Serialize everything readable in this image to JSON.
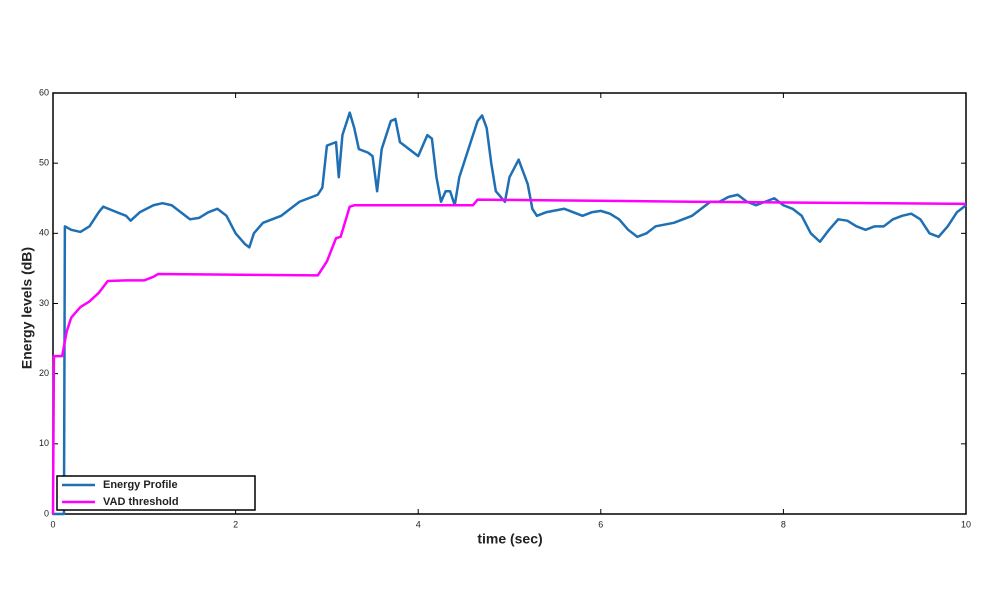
{
  "chart_data": {
    "type": "line",
    "x_label": "time (sec)",
    "y_label": "Energy levels (dB)",
    "xlim": [
      0,
      10
    ],
    "ylim": [
      0,
      60
    ],
    "xticks": [
      0,
      2,
      4,
      6,
      8,
      10
    ],
    "yticks": [
      0,
      10,
      20,
      30,
      40,
      50,
      60
    ],
    "grid": false,
    "legend": "lower left",
    "series": [
      {
        "name": "Energy Profile",
        "color": "#1f6fb4",
        "x": [
          0,
          0.12,
          0.13,
          0.2,
          0.3,
          0.4,
          0.5,
          0.55,
          0.7,
          0.8,
          0.85,
          0.95,
          1.1,
          1.2,
          1.3,
          1.4,
          1.5,
          1.6,
          1.7,
          1.8,
          1.9,
          2.0,
          2.1,
          2.15,
          2.2,
          2.3,
          2.5,
          2.6,
          2.7,
          2.8,
          2.9,
          2.95,
          3.0,
          3.1,
          3.13,
          3.17,
          3.25,
          3.3,
          3.35,
          3.45,
          3.5,
          3.55,
          3.6,
          3.7,
          3.75,
          3.8,
          3.9,
          4.0,
          4.05,
          4.1,
          4.15,
          4.2,
          4.25,
          4.3,
          4.35,
          4.4,
          4.45,
          4.55,
          4.65,
          4.7,
          4.75,
          4.8,
          4.85,
          4.95,
          5.0,
          5.1,
          5.2,
          5.25,
          5.3,
          5.4,
          5.6,
          5.8,
          5.9,
          6.0,
          6.1,
          6.2,
          6.3,
          6.4,
          6.5,
          6.6,
          6.8,
          6.9,
          7.0,
          7.1,
          7.2,
          7.3,
          7.4,
          7.5,
          7.6,
          7.7,
          7.8,
          7.9,
          8.0,
          8.1,
          8.2,
          8.3,
          8.4,
          8.5,
          8.6,
          8.7,
          8.8,
          8.9,
          9.0,
          9.1,
          9.2,
          9.3,
          9.4,
          9.5,
          9.6,
          9.7,
          9.8,
          9.9,
          10.0
        ],
        "values": [
          0,
          0,
          41,
          40.5,
          40.2,
          41,
          43,
          43.8,
          43,
          42.5,
          41.8,
          43,
          44,
          44.3,
          44,
          43,
          42,
          42.2,
          43,
          43.5,
          42.5,
          40,
          38.5,
          38,
          40,
          41.5,
          42.5,
          43.5,
          44.5,
          45,
          45.5,
          46.5,
          52.5,
          53,
          48,
          54,
          57.2,
          55,
          52,
          51.5,
          51,
          46,
          52,
          56,
          56.3,
          53,
          52,
          51,
          52.5,
          54,
          53.5,
          48,
          44.5,
          46,
          46,
          44,
          48,
          52,
          56,
          56.8,
          55,
          50,
          46,
          44.5,
          48,
          50.5,
          47,
          43.5,
          42.5,
          43,
          43.5,
          42.5,
          43,
          43.2,
          42.8,
          42,
          40.5,
          39.5,
          40,
          41,
          41.5,
          42,
          42.5,
          43.5,
          44.5,
          44.5,
          45.2,
          45.5,
          44.5,
          44,
          44.5,
          45,
          44,
          43.5,
          42.5,
          40,
          38.8,
          40.5,
          42,
          41.8,
          41,
          40.5,
          41,
          41,
          42,
          42.5,
          42.8,
          42,
          40,
          39.5,
          41,
          43,
          44
        ]
      },
      {
        "name": "VAD threshold",
        "color": "#ff00ff",
        "x": [
          0,
          0.01,
          0.1,
          0.15,
          0.2,
          0.3,
          0.4,
          0.5,
          0.6,
          0.8,
          1.0,
          1.1,
          1.15,
          2.9,
          3.0,
          3.1,
          3.15,
          3.25,
          3.3,
          4.6,
          4.65,
          5.5,
          7.0,
          8.0,
          10.0
        ],
        "values": [
          0,
          22.5,
          22.5,
          26,
          28,
          29.5,
          30.3,
          31.5,
          33.2,
          33.3,
          33.3,
          33.8,
          34.2,
          34,
          36,
          39.3,
          39.5,
          43.8,
          44,
          44,
          44.8,
          44.7,
          44.5,
          44.4,
          44.2
        ]
      }
    ]
  }
}
